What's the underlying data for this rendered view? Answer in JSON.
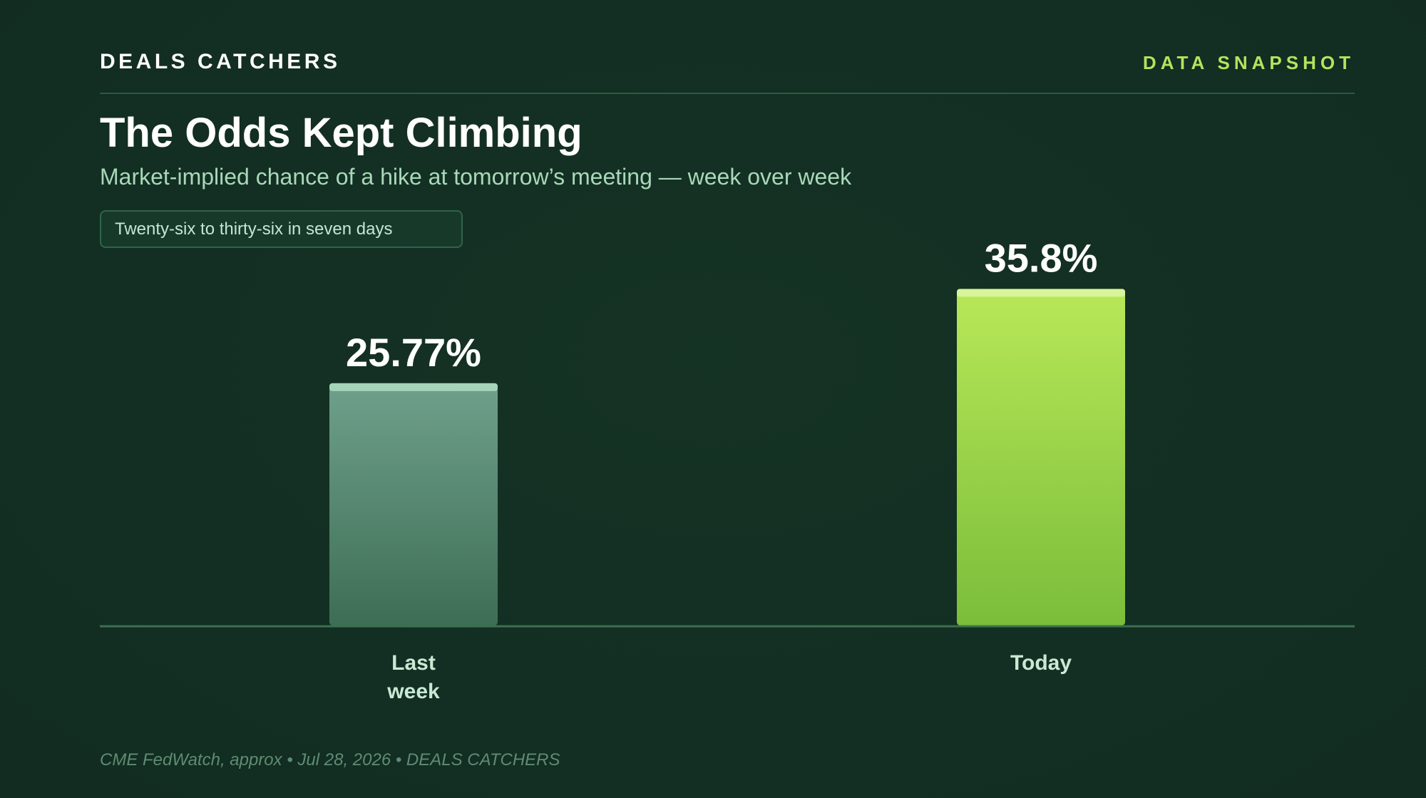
{
  "header": {
    "brand": "DEALS CATCHERS",
    "tag": "DATA SNAPSHOT"
  },
  "title": "The Odds Kept Climbing",
  "subtitle": "Market-implied chance of a hike at tomorrow’s meeting — week over week",
  "callout": "Twenty-six to thirty-six in seven days",
  "footer": "CME FedWatch, approx • Jul 28, 2026 • DEALS CATCHERS",
  "colors": {
    "background": "#132e23",
    "accent": "#b5e35d",
    "last_week_bar_top": "#6fa08b",
    "last_week_bar_bottom": "#3d6e55",
    "today_bar_top": "#b8e858",
    "today_bar_bottom": "#7bbd3a"
  },
  "chart_data": {
    "type": "bar",
    "categories": [
      [
        "Last",
        "week"
      ],
      [
        "Today"
      ]
    ],
    "values": [
      25.77,
      35.8
    ],
    "value_labels": [
      "25.77%",
      "35.8%"
    ],
    "unit": "%",
    "ylim": [
      0,
      40
    ],
    "grid": false,
    "legend": "none"
  }
}
